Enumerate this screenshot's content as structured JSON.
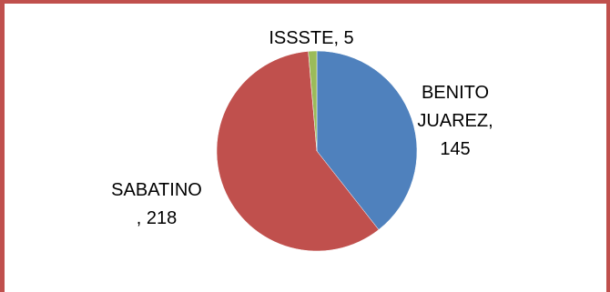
{
  "chart_data": {
    "type": "pie",
    "categories": [
      "BENITO JUAREZ",
      "SABATINO",
      "ISSSTE"
    ],
    "values": [
      145,
      218,
      5
    ],
    "colors": [
      "#4f81bd",
      "#c0504d",
      "#9bbb59"
    ],
    "labels": [
      {
        "lines": [
          "BENITO",
          "JUAREZ,",
          "145"
        ]
      },
      {
        "lines": [
          "SABATINO",
          ", 218"
        ]
      },
      {
        "lines": [
          "ISSSTE, 5"
        ]
      }
    ],
    "legend": "none"
  },
  "frame": {
    "border_color": "#c0504d"
  }
}
